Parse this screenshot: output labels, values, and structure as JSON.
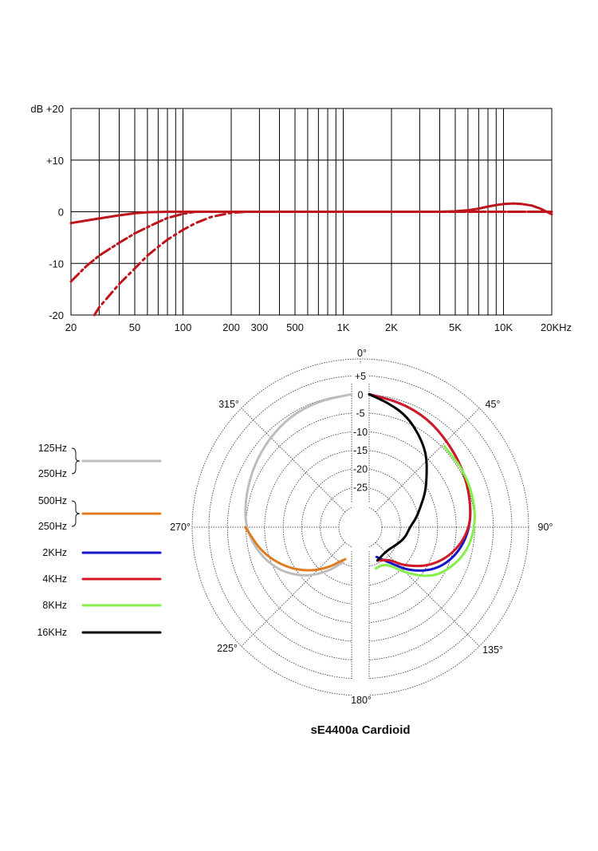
{
  "chart_data": [
    {
      "type": "line",
      "title": "",
      "xscale": "log",
      "xlim": [
        20,
        20000
      ],
      "ylim": [
        -20,
        20
      ],
      "grid": true,
      "yunit": "dB",
      "x_ticks": [
        20,
        50,
        100,
        200,
        300,
        500,
        1000,
        2000,
        5000,
        10000,
        20000
      ],
      "x_tick_labels": [
        "20",
        "50",
        "100",
        "200",
        "300",
        "500",
        "1K",
        "2K",
        "5K",
        "10K",
        "20KHz"
      ],
      "y_ticks": [
        20,
        10,
        0,
        -10,
        -20
      ],
      "y_tick_labels": [
        "dB +20",
        "+10",
        "0",
        "-10",
        "-20"
      ],
      "series": [
        {
          "color": "#c0141b",
          "style": "solid",
          "points": [
            [
              20,
              -2.2
            ],
            [
              25,
              -1.7
            ],
            [
              30,
              -1.3
            ],
            [
              40,
              -0.7
            ],
            [
              50,
              -0.3
            ],
            [
              60,
              -0.1
            ],
            [
              80,
              0
            ],
            [
              100,
              0
            ],
            [
              200,
              0
            ],
            [
              500,
              0
            ],
            [
              1000,
              0
            ],
            [
              2000,
              0
            ],
            [
              4000,
              0
            ],
            [
              5000,
              0.1
            ],
            [
              6000,
              0.3
            ],
            [
              7000,
              0.6
            ],
            [
              8000,
              1.0
            ],
            [
              9000,
              1.3
            ],
            [
              10000,
              1.5
            ],
            [
              11500,
              1.6
            ],
            [
              13000,
              1.5
            ],
            [
              15000,
              1.2
            ],
            [
              17000,
              0.6
            ],
            [
              20000,
              -0.5
            ]
          ]
        },
        {
          "color": "#c0141b",
          "style": "dashed",
          "points": [
            [
              20,
              -13.5
            ],
            [
              25,
              -10.5
            ],
            [
              30,
              -8.5
            ],
            [
              40,
              -6
            ],
            [
              50,
              -4.2
            ],
            [
              60,
              -3
            ],
            [
              70,
              -2
            ],
            [
              80,
              -1.2
            ],
            [
              100,
              -0.4
            ],
            [
              120,
              0
            ],
            [
              150,
              0
            ],
            [
              200,
              0
            ],
            [
              300,
              0
            ],
            [
              500,
              0
            ],
            [
              20000,
              0
            ]
          ]
        },
        {
          "color": "#c0141b",
          "style": "dashed",
          "points": [
            [
              28,
              -20
            ],
            [
              30,
              -18.5
            ],
            [
              40,
              -14
            ],
            [
              50,
              -11
            ],
            [
              60,
              -8.5
            ],
            [
              70,
              -6.8
            ],
            [
              80,
              -5.4
            ],
            [
              100,
              -3.5
            ],
            [
              120,
              -2.2
            ],
            [
              150,
              -1
            ],
            [
              200,
              -0.2
            ],
            [
              250,
              0
            ],
            [
              300,
              0
            ],
            [
              500,
              0
            ],
            [
              20000,
              0
            ]
          ]
        }
      ]
    },
    {
      "type": "polar",
      "title": "sE4400a  Cardioid",
      "angle_labels": [
        "0°",
        "45°",
        "90°",
        "135°",
        "180°",
        "225°",
        "270°",
        "315°"
      ],
      "radial_labels": [
        "+5",
        "0",
        "-5",
        "-10",
        "-15",
        "-20",
        "-25"
      ],
      "rlim": [
        -30,
        5
      ],
      "legend": [
        {
          "labels": [
            "125Hz",
            "250Hz"
          ],
          "color": "#bdbdbd"
        },
        {
          "labels": [
            "500Hz",
            "250Hz"
          ],
          "color": "#e07b1f"
        },
        {
          "labels": [
            "2KHz"
          ],
          "color": "#1414c8"
        },
        {
          "labels": [
            "4KHz"
          ],
          "color": "#d21a24"
        },
        {
          "labels": [
            "8KHz"
          ],
          "color": "#86ee4a"
        },
        {
          "labels": [
            "16KHz"
          ],
          "color": "#000000"
        }
      ],
      "series": [
        {
          "label": "125Hz / 250Hz",
          "color": "#bdbdbd",
          "side": "left",
          "points": [
            [
              0,
              0
            ],
            [
              15,
              -0.5
            ],
            [
              30,
              -1
            ],
            [
              45,
              -2
            ],
            [
              60,
              -3
            ],
            [
              75,
              -4
            ],
            [
              90,
              -5
            ],
            [
              105,
              -8
            ],
            [
              120,
              -12
            ],
            [
              135,
              -17
            ],
            [
              150,
              -22
            ],
            [
              165,
              -26
            ]
          ]
        },
        {
          "label": "500Hz / 250Hz",
          "color": "#e07b1f",
          "side": "left",
          "points": [
            [
              90,
              -5
            ],
            [
              105,
              -9
            ],
            [
              120,
              -14
            ],
            [
              135,
              -19
            ],
            [
              150,
              -23.5
            ],
            [
              160,
              -26
            ],
            [
              168,
              -27
            ]
          ]
        },
        {
          "label": "2KHz",
          "color": "#1414c8",
          "side": "right",
          "points": [
            [
              0,
              0
            ],
            [
              15,
              -1
            ],
            [
              30,
              -2
            ],
            [
              45,
              -3.5
            ],
            [
              60,
              -4.5
            ],
            [
              75,
              -5.5
            ],
            [
              90,
              -6.5
            ],
            [
              105,
              -9
            ],
            [
              120,
              -13
            ],
            [
              135,
              -19
            ],
            [
              150,
              -25
            ],
            [
              165,
              -27.5
            ]
          ]
        },
        {
          "label": "4KHz",
          "color": "#d21a24",
          "side": "right",
          "points": [
            [
              0,
              0
            ],
            [
              15,
              -1
            ],
            [
              30,
              -2
            ],
            [
              45,
              -3.5
            ],
            [
              60,
              -4.5
            ],
            [
              75,
              -5.5
            ],
            [
              90,
              -6.5
            ],
            [
              105,
              -10
            ],
            [
              120,
              -15
            ],
            [
              135,
              -21
            ],
            [
              145,
              -25
            ],
            [
              155,
              -26
            ],
            [
              165,
              -26.5
            ]
          ]
        },
        {
          "label": "8KHz",
          "color": "#86ee4a",
          "side": "right",
          "points": [
            [
              45,
              -5
            ],
            [
              60,
              -4.5
            ],
            [
              75,
              -4.5
            ],
            [
              90,
              -5
            ],
            [
              105,
              -7
            ],
            [
              120,
              -11
            ],
            [
              130,
              -15
            ],
            [
              140,
              -20
            ],
            [
              150,
              -24
            ],
            [
              160,
              -25
            ],
            [
              170,
              -24.5
            ]
          ]
        },
        {
          "label": "16KHz",
          "color": "#000000",
          "side": "right",
          "points": [
            [
              0,
              0
            ],
            [
              10,
              -2
            ],
            [
              20,
              -4
            ],
            [
              30,
              -7
            ],
            [
              40,
              -10
            ],
            [
              50,
              -14
            ],
            [
              60,
              -17
            ],
            [
              70,
              -20
            ],
            [
              80,
              -22
            ],
            [
              90,
              -24
            ],
            [
              105,
              -25
            ],
            [
              120,
              -26.5
            ],
            [
              135,
              -27.5
            ],
            [
              150,
              -27.5
            ],
            [
              165,
              -26.5
            ]
          ]
        }
      ]
    }
  ]
}
